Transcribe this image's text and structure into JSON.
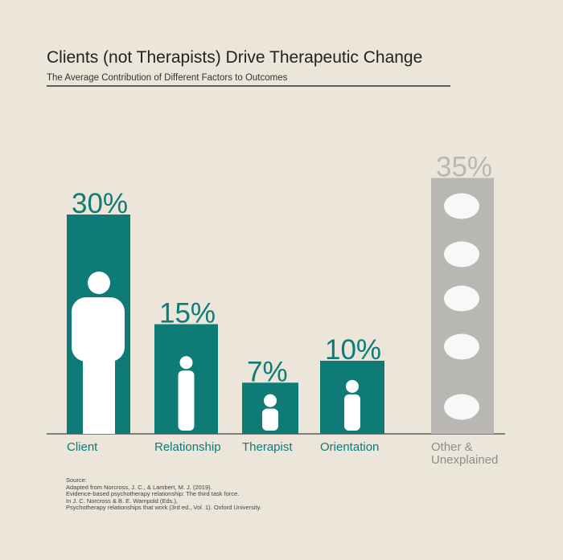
{
  "chart_data": {
    "type": "bar",
    "title": "Clients (not Therapists) Drive Therapeutic Change",
    "subtitle": "The Average Contribution of Different Factors to Outcomes",
    "categories": [
      "Client",
      "Relationship",
      "Therapist",
      "Orientation",
      "Other & Unexplained"
    ],
    "values": [
      30,
      15,
      7,
      10,
      35
    ],
    "value_labels": [
      "30%",
      "15%",
      "7%",
      "10%",
      "35%"
    ],
    "colors": [
      "#0f7b77",
      "#0f7b77",
      "#0f7b77",
      "#0f7b77",
      "#b8b7b3"
    ],
    "source": {
      "heading": "Source:",
      "lines": [
        "Adapted from Norcross, J. C., & Lambert, M. J. (2019).",
        "Evidence-based psychotherapy relationship: The third task force.",
        "In J. C. Norcross & B. E. Wampold (Eds.),",
        "Psychotherapy relationships that work (3rd ed., Vol. 1). Oxford University."
      ]
    }
  }
}
